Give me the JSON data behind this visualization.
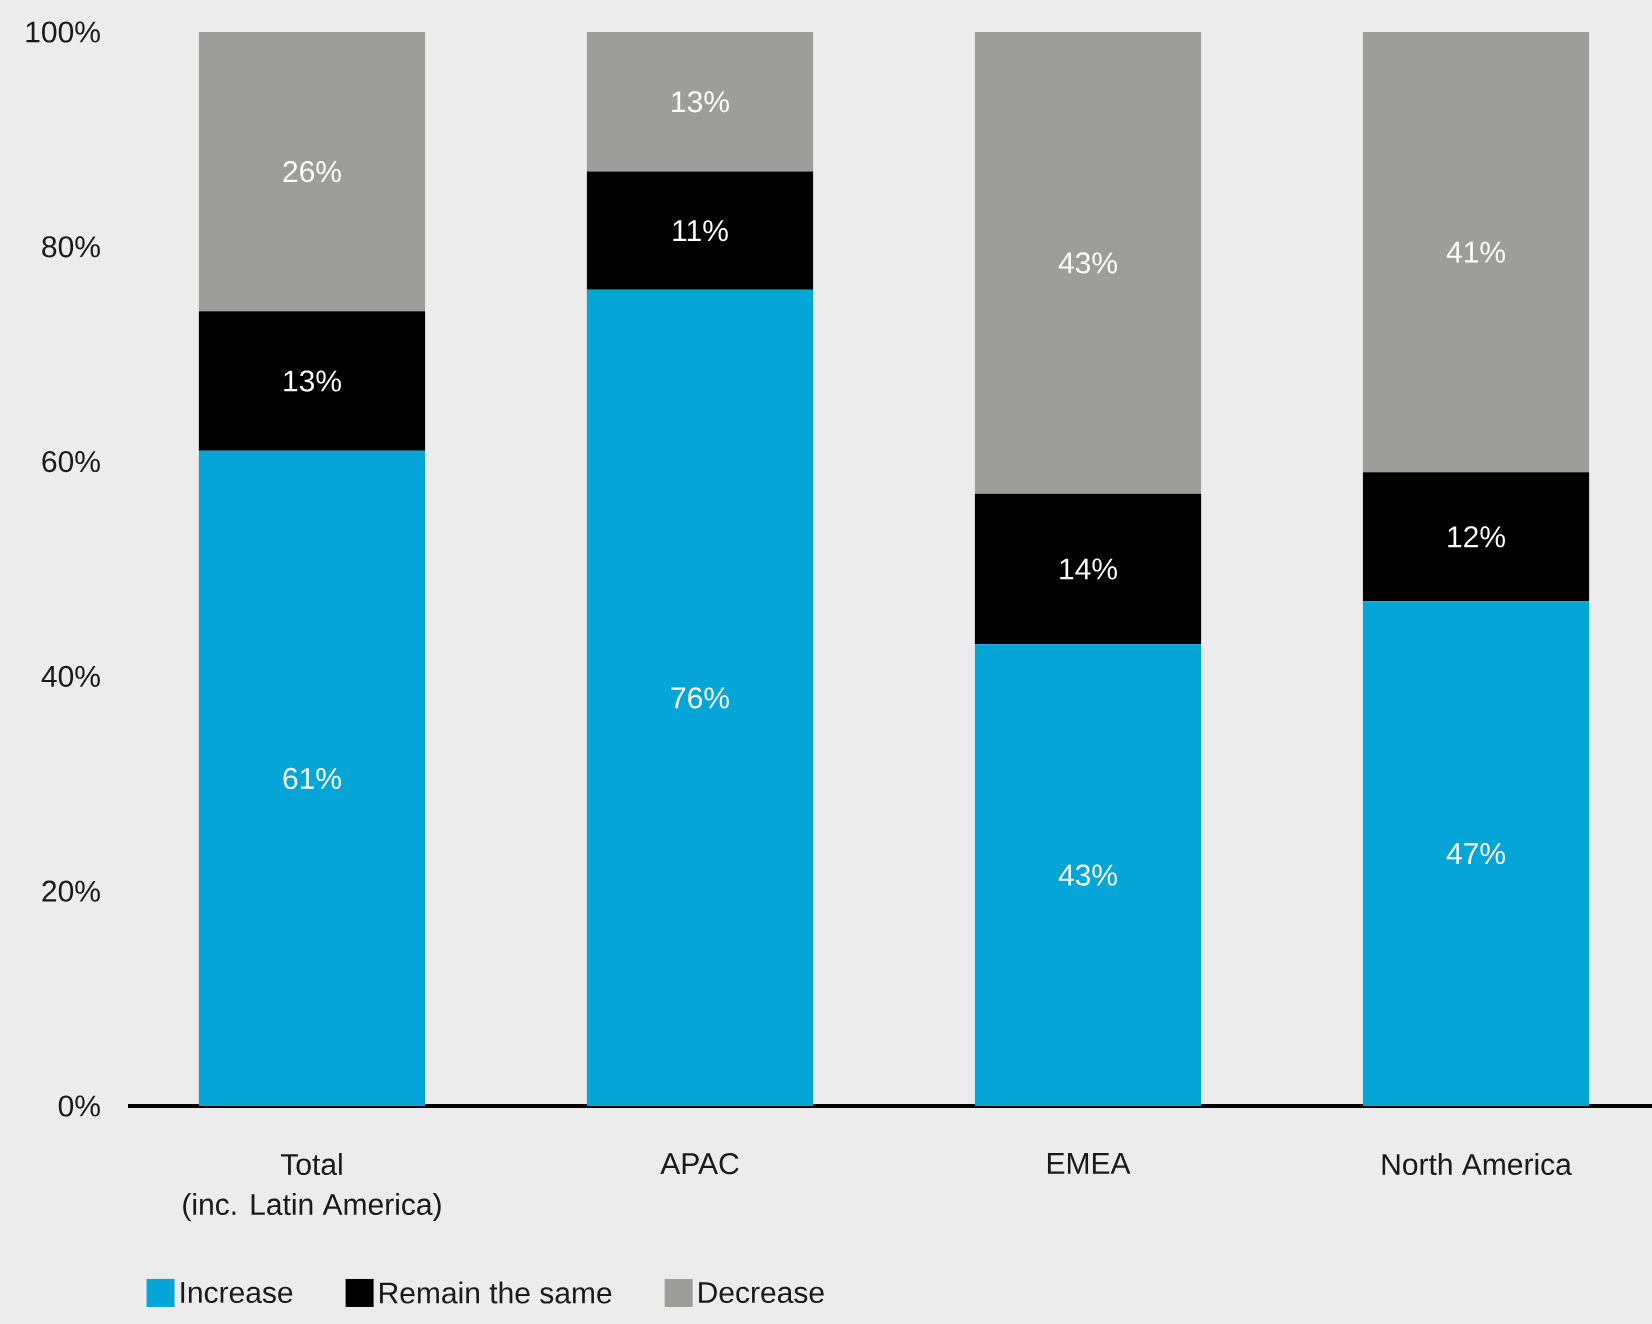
{
  "chart_data": {
    "type": "bar",
    "stacked": true,
    "categories": [
      "Total\n(inc. Latin America)",
      "APAC",
      "EMEA",
      "North America"
    ],
    "series": [
      {
        "name": "Increase",
        "color": "#06a5d8",
        "values": [
          61,
          76,
          43,
          47
        ],
        "value_labels": [
          "61%",
          "76%",
          "43%",
          "47%"
        ]
      },
      {
        "name": "Remain the same",
        "color": "#000000",
        "values": [
          13,
          11,
          14,
          12
        ],
        "value_labels": [
          "13%",
          "11%",
          "14%",
          "12%"
        ]
      },
      {
        "name": "Decrease",
        "color": "#9d9d9b",
        "values": [
          26,
          13,
          43,
          41
        ],
        "value_labels": [
          "26%",
          "13%",
          "43%",
          "41%"
        ]
      }
    ],
    "ylim": [
      0,
      100
    ],
    "yticks": [
      {
        "value": 0,
        "label": "0%"
      },
      {
        "value": 20,
        "label": "20%"
      },
      {
        "value": 40,
        "label": "40%"
      },
      {
        "value": 60,
        "label": "60%"
      },
      {
        "value": 80,
        "label": "80%"
      },
      {
        "value": 100,
        "label": "100%"
      }
    ],
    "legend": "bottom"
  }
}
